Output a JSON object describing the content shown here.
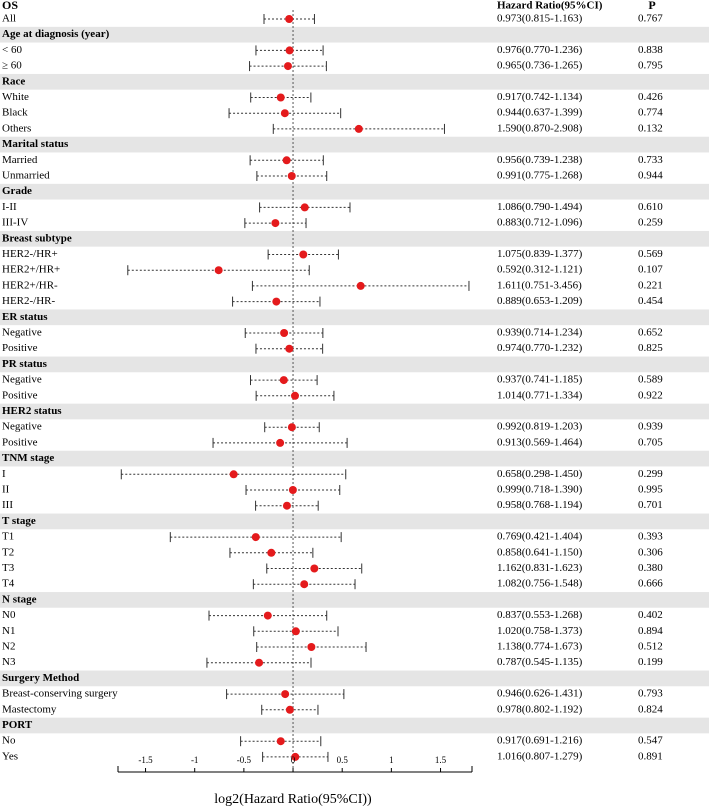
{
  "chart_data": {
    "type": "forest",
    "header": {
      "group": "OS",
      "ci": "Hazard Ratio(95%CI)",
      "p": "P"
    },
    "x_label": "log2(Hazard Ratio(95%CI))",
    "x_scale": "log2",
    "xlim": [
      -1.78,
      1.82
    ],
    "xticks": [
      -1.5,
      -1,
      -0.5,
      0,
      0.5,
      1,
      1.5
    ],
    "reference_line": 0,
    "marker_color": "#e41a1c",
    "group_fill": "#e5e5e5",
    "rows": [
      {
        "label": "All",
        "hr": 0.973,
        "lower": 0.815,
        "upper": 1.163,
        "ci": "0.973(0.815-1.163)",
        "p": "0.767"
      },
      {
        "label": "Age at diagnosis (year)",
        "group": true
      },
      {
        "label": "< 60",
        "hr": 0.976,
        "lower": 0.77,
        "upper": 1.236,
        "ci": "0.976(0.770-1.236)",
        "p": "0.838"
      },
      {
        "label": "≥ 60",
        "hr": 0.965,
        "lower": 0.736,
        "upper": 1.265,
        "ci": "0.965(0.736-1.265)",
        "p": "0.795"
      },
      {
        "label": "Race",
        "group": true
      },
      {
        "label": "White",
        "hr": 0.917,
        "lower": 0.742,
        "upper": 1.134,
        "ci": "0.917(0.742-1.134)",
        "p": "0.426"
      },
      {
        "label": "Black",
        "hr": 0.944,
        "lower": 0.637,
        "upper": 1.399,
        "ci": "0.944(0.637-1.399)",
        "p": "0.774"
      },
      {
        "label": "Others",
        "hr": 1.59,
        "lower": 0.87,
        "upper": 2.908,
        "ci": "1.590(0.870-2.908)",
        "p": "0.132"
      },
      {
        "label": "Marital status",
        "group": true
      },
      {
        "label": "Married",
        "hr": 0.956,
        "lower": 0.739,
        "upper": 1.238,
        "ci": "0.956(0.739-1.238)",
        "p": "0.733"
      },
      {
        "label": "Unmarried",
        "hr": 0.991,
        "lower": 0.775,
        "upper": 1.268,
        "ci": "0.991(0.775-1.268)",
        "p": "0.944"
      },
      {
        "label": "Grade",
        "group": true
      },
      {
        "label": "I-II",
        "hr": 1.086,
        "lower": 0.79,
        "upper": 1.494,
        "ci": "1.086(0.790-1.494)",
        "p": "0.610"
      },
      {
        "label": "III-IV",
        "hr": 0.883,
        "lower": 0.712,
        "upper": 1.096,
        "ci": "0.883(0.712-1.096)",
        "p": "0.259"
      },
      {
        "label": "Breast subtype",
        "group": true
      },
      {
        "label": "HER2-/HR+",
        "hr": 1.075,
        "lower": 0.839,
        "upper": 1.377,
        "ci": "1.075(0.839-1.377)",
        "p": "0.569"
      },
      {
        "label": "HER2+/HR+",
        "hr": 0.592,
        "lower": 0.312,
        "upper": 1.121,
        "ci": "0.592(0.312-1.121)",
        "p": "0.107"
      },
      {
        "label": "HER2+/HR-",
        "hr": 1.611,
        "lower": 0.751,
        "upper": 3.456,
        "ci": "1.611(0.751-3.456)",
        "p": "0.221"
      },
      {
        "label": "HER2-/HR-",
        "hr": 0.889,
        "lower": 0.653,
        "upper": 1.209,
        "ci": "0.889(0.653-1.209)",
        "p": "0.454"
      },
      {
        "label": "ER status",
        "group": true
      },
      {
        "label": "Negative",
        "hr": 0.939,
        "lower": 0.714,
        "upper": 1.234,
        "ci": "0.939(0.714-1.234)",
        "p": "0.652"
      },
      {
        "label": "Positive",
        "hr": 0.974,
        "lower": 0.77,
        "upper": 1.232,
        "ci": "0.974(0.770-1.232)",
        "p": "0.825"
      },
      {
        "label": "PR status",
        "group": true
      },
      {
        "label": "Negative",
        "hr": 0.937,
        "lower": 0.741,
        "upper": 1.185,
        "ci": "0.937(0.741-1.185)",
        "p": "0.589"
      },
      {
        "label": "Positive",
        "hr": 1.014,
        "lower": 0.771,
        "upper": 1.334,
        "ci": "1.014(0.771-1.334)",
        "p": "0.922"
      },
      {
        "label": "HER2 status",
        "group": true
      },
      {
        "label": "Negative",
        "hr": 0.992,
        "lower": 0.819,
        "upper": 1.203,
        "ci": "0.992(0.819-1.203)",
        "p": "0.939"
      },
      {
        "label": "Positive",
        "hr": 0.913,
        "lower": 0.569,
        "upper": 1.464,
        "ci": "0.913(0.569-1.464)",
        "p": "0.705"
      },
      {
        "label": "TNM stage",
        "group": true
      },
      {
        "label": "I",
        "hr": 0.658,
        "lower": 0.298,
        "upper": 1.45,
        "ci": "0.658(0.298-1.450)",
        "p": "0.299"
      },
      {
        "label": "II",
        "hr": 0.999,
        "lower": 0.718,
        "upper": 1.39,
        "ci": "0.999(0.718-1.390)",
        "p": "0.995"
      },
      {
        "label": "III",
        "hr": 0.958,
        "lower": 0.768,
        "upper": 1.194,
        "ci": "0.958(0.768-1.194)",
        "p": "0.701"
      },
      {
        "label": "T stage",
        "group": true
      },
      {
        "label": "T1",
        "hr": 0.769,
        "lower": 0.421,
        "upper": 1.404,
        "ci": "0.769(0.421-1.404)",
        "p": "0.393"
      },
      {
        "label": "T2",
        "hr": 0.858,
        "lower": 0.641,
        "upper": 1.15,
        "ci": "0.858(0.641-1.150)",
        "p": "0.306"
      },
      {
        "label": "T3",
        "hr": 1.162,
        "lower": 0.831,
        "upper": 1.623,
        "ci": "1.162(0.831-1.623)",
        "p": "0.380"
      },
      {
        "label": "T4",
        "hr": 1.082,
        "lower": 0.756,
        "upper": 1.548,
        "ci": "1.082(0.756-1.548)",
        "p": "0.666"
      },
      {
        "label": "N stage",
        "group": true
      },
      {
        "label": "N0",
        "hr": 0.837,
        "lower": 0.553,
        "upper": 1.268,
        "ci": "0.837(0.553-1.268)",
        "p": "0.402"
      },
      {
        "label": "N1",
        "hr": 1.02,
        "lower": 0.758,
        "upper": 1.373,
        "ci": "1.020(0.758-1.373)",
        "p": "0.894"
      },
      {
        "label": "N2",
        "hr": 1.138,
        "lower": 0.774,
        "upper": 1.673,
        "ci": "1.138(0.774-1.673)",
        "p": "0.512"
      },
      {
        "label": "N3",
        "hr": 0.787,
        "lower": 0.545,
        "upper": 1.135,
        "ci": "0.787(0.545-1.135)",
        "p": "0.199"
      },
      {
        "label": "Surgery Method",
        "group": true
      },
      {
        "label": "Breast-conserving surgery",
        "hr": 0.946,
        "lower": 0.626,
        "upper": 1.431,
        "ci": "0.946(0.626-1.431)",
        "p": "0.793"
      },
      {
        "label": "Mastectomy",
        "hr": 0.978,
        "lower": 0.802,
        "upper": 1.192,
        "ci": "0.978(0.802-1.192)",
        "p": "0.824"
      },
      {
        "label": "PORT",
        "group": true
      },
      {
        "label": "No",
        "hr": 0.917,
        "lower": 0.691,
        "upper": 1.216,
        "ci": "0.917(0.691-1.216)",
        "p": "0.547"
      },
      {
        "label": "Yes",
        "hr": 1.016,
        "lower": 0.807,
        "upper": 1.279,
        "ci": "1.016(0.807-1.279)",
        "p": "0.891"
      }
    ]
  }
}
